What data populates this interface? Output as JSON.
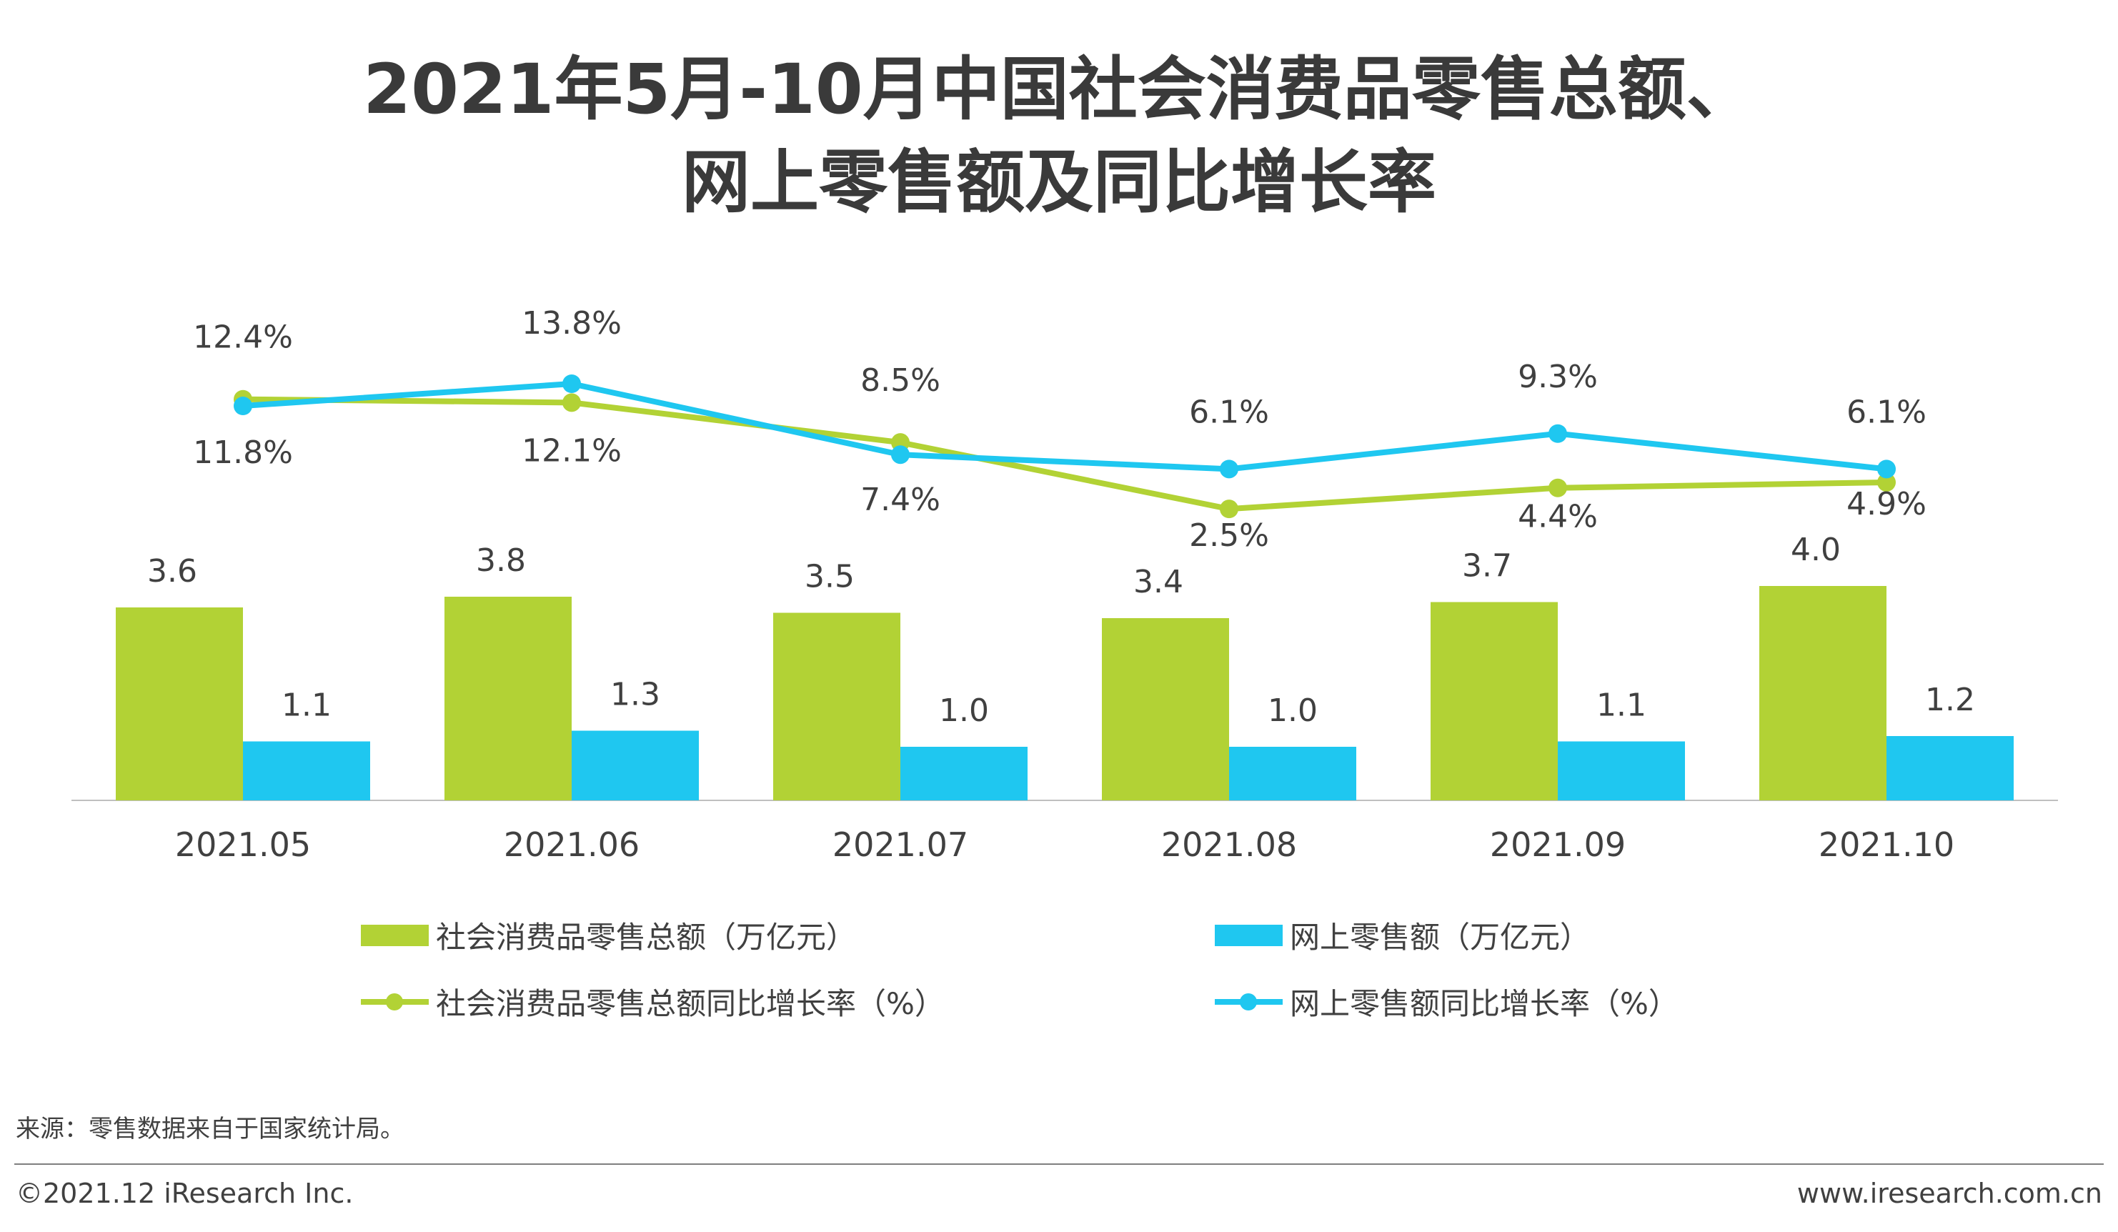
{
  "title": {
    "line1": "2021年5月-10月中国社会消费品零售总额、",
    "line2": "网上零售额及同比增长率"
  },
  "colors": {
    "green": "#b2d235",
    "blue": "#1fc7f0",
    "axis": "#bfbfbf",
    "label": "#404040"
  },
  "chart_data": {
    "type": "bar",
    "categories": [
      "2021.05",
      "2021.06",
      "2021.07",
      "2021.08",
      "2021.09",
      "2021.10"
    ],
    "series": [
      {
        "name": "社会消费品零售总额（万亿元）",
        "type": "bar",
        "color": "#b2d235",
        "values": [
          3.6,
          3.8,
          3.5,
          3.4,
          3.7,
          4.0
        ],
        "labels": [
          "3.6",
          "3.8",
          "3.5",
          "3.4",
          "3.7",
          "4.0"
        ]
      },
      {
        "name": "网上零售额（万亿元）",
        "type": "bar",
        "color": "#1fc7f0",
        "values": [
          1.1,
          1.3,
          1.0,
          1.0,
          1.1,
          1.2
        ],
        "labels": [
          "1.1",
          "1.3",
          "1.0",
          "1.0",
          "1.1",
          "1.2"
        ]
      },
      {
        "name": "社会消费品零售总额同比增长率（%）",
        "type": "line",
        "color": "#b2d235",
        "values": [
          12.4,
          12.1,
          8.5,
          2.5,
          4.4,
          4.9
        ],
        "labels": [
          "12.4%",
          "12.1%",
          "8.5%",
          "2.5%",
          "4.4%",
          "4.9%"
        ]
      },
      {
        "name": "网上零售额同比增长率（%）",
        "type": "line",
        "color": "#1fc7f0",
        "values": [
          11.8,
          13.8,
          7.4,
          6.1,
          9.3,
          6.1
        ],
        "labels": [
          "11.8%",
          "13.8%",
          "7.4%",
          "6.1%",
          "9.3%",
          "6.1%"
        ]
      }
    ],
    "legend_position": "bottom",
    "grid": false
  },
  "footer": {
    "source": "来源：零售数据来自于国家统计局。",
    "copyright": "©2021.12 iResearch Inc.",
    "website": "www.iresearch.com.cn"
  }
}
